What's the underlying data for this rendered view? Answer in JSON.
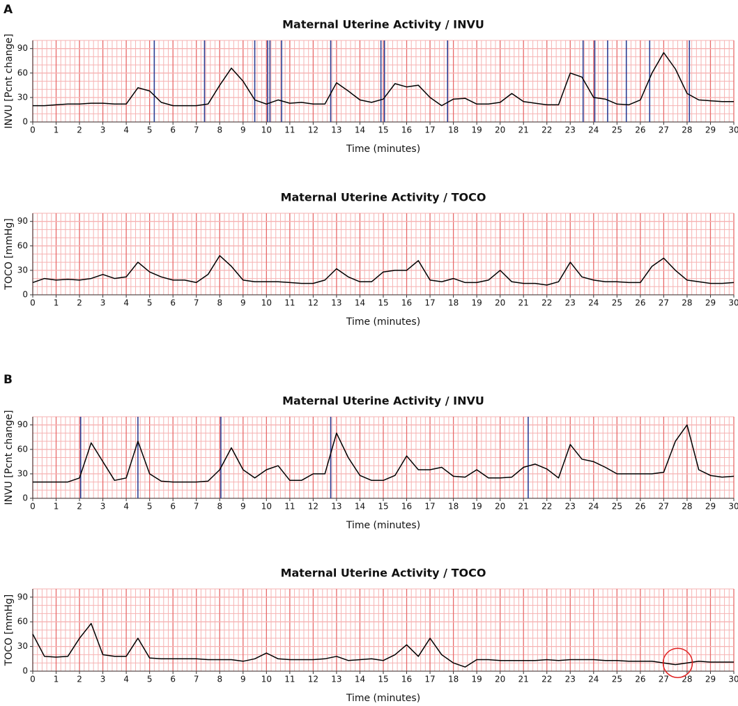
{
  "chart_data": [
    {
      "type": "line",
      "panel": "A",
      "title": "Maternal Uterine Activity / INVU",
      "x_label": "Time (minutes)",
      "y_label": "INVU [Pcnt change]",
      "xlim": [
        0,
        30
      ],
      "xticks": [
        0,
        1,
        2,
        3,
        4,
        5,
        6,
        7,
        8,
        9,
        10,
        11,
        12,
        13,
        14,
        15,
        16,
        17,
        18,
        19,
        20,
        21,
        22,
        23,
        24,
        25,
        26,
        27,
        28,
        29,
        30
      ],
      "ylim": [
        0,
        100
      ],
      "yticks": [
        0,
        30,
        60,
        90
      ],
      "grid": true,
      "grid_color": "#f6b3b3",
      "major_grid_color": "#e86a6a",
      "color": "#000000",
      "x": [
        0,
        0.5,
        1,
        1.5,
        2,
        2.5,
        3,
        3.5,
        4,
        4.5,
        5,
        5.5,
        6,
        6.5,
        7,
        7.5,
        8,
        8.5,
        9,
        9.5,
        10,
        10.5,
        11,
        11.5,
        12,
        12.5,
        13,
        13.5,
        14,
        14.5,
        15,
        15.5,
        16,
        16.5,
        17,
        17.5,
        18,
        18.5,
        19,
        19.5,
        20,
        20.5,
        21,
        21.5,
        22,
        22.5,
        23,
        23.5,
        24,
        24.5,
        25,
        25.5,
        26,
        26.5,
        27,
        27.5,
        28,
        28.5,
        29,
        29.5,
        30
      ],
      "values": [
        20,
        20,
        21,
        22,
        22,
        23,
        23,
        22,
        22,
        42,
        38,
        24,
        20,
        20,
        20,
        22,
        45,
        66,
        50,
        27,
        22,
        27,
        23,
        24,
        22,
        22,
        48,
        38,
        27,
        24,
        28,
        47,
        43,
        45,
        30,
        20,
        28,
        29,
        22,
        22,
        24,
        35,
        25,
        23,
        21,
        21,
        60,
        55,
        30,
        28,
        22,
        21,
        27,
        60,
        85,
        65,
        35,
        27,
        26,
        25,
        25
      ],
      "markers": [
        5.2,
        7.35,
        9.5,
        10.05,
        10.15,
        10.65,
        12.75,
        14.9,
        15.05,
        17.75,
        23.55,
        24.05,
        24.6,
        25.4,
        26.4,
        28.1
      ],
      "marker_color": "#2c3e94"
    },
    {
      "type": "line",
      "title": "Maternal Uterine Activity / TOCO",
      "x_label": "Time (minutes)",
      "y_label": "TOCO [mmHg]",
      "xlim": [
        0,
        30
      ],
      "xticks": [
        0,
        1,
        2,
        3,
        4,
        5,
        6,
        7,
        8,
        9,
        10,
        11,
        12,
        13,
        14,
        15,
        16,
        17,
        18,
        19,
        20,
        21,
        22,
        23,
        24,
        25,
        26,
        27,
        28,
        29,
        30
      ],
      "ylim": [
        0,
        100
      ],
      "yticks": [
        0,
        30,
        60,
        90
      ],
      "grid": true,
      "grid_color": "#f6b3b3",
      "major_grid_color": "#e86a6a",
      "color": "#000000",
      "x": [
        0,
        0.5,
        1,
        1.5,
        2,
        2.5,
        3,
        3.5,
        4,
        4.5,
        5,
        5.5,
        6,
        6.5,
        7,
        7.5,
        8,
        8.5,
        9,
        9.5,
        10,
        10.5,
        11,
        11.5,
        12,
        12.5,
        13,
        13.5,
        14,
        14.5,
        15,
        15.5,
        16,
        16.5,
        17,
        17.5,
        18,
        18.5,
        19,
        19.5,
        20,
        20.5,
        21,
        21.5,
        22,
        22.5,
        23,
        23.5,
        24,
        24.5,
        25,
        25.5,
        26,
        26.5,
        27,
        27.5,
        28,
        28.5,
        29,
        29.5,
        30
      ],
      "values": [
        15,
        20,
        18,
        19,
        18,
        20,
        25,
        20,
        22,
        40,
        28,
        22,
        18,
        18,
        15,
        25,
        48,
        35,
        18,
        16,
        16,
        16,
        15,
        14,
        14,
        18,
        32,
        22,
        16,
        16,
        28,
        30,
        30,
        42,
        18,
        16,
        20,
        15,
        15,
        18,
        30,
        16,
        14,
        14,
        12,
        16,
        40,
        22,
        18,
        16,
        16,
        15,
        15,
        35,
        45,
        30,
        18,
        16,
        14,
        14,
        15
      ]
    },
    {
      "type": "line",
      "panel": "B",
      "title": "Maternal Uterine Activity / INVU",
      "x_label": "Time (minutes)",
      "y_label": "INVU [Pcnt change]",
      "xlim": [
        0,
        30
      ],
      "xticks": [
        0,
        1,
        2,
        3,
        4,
        5,
        6,
        7,
        8,
        9,
        10,
        11,
        12,
        13,
        14,
        15,
        16,
        17,
        18,
        19,
        20,
        21,
        22,
        23,
        24,
        25,
        26,
        27,
        28,
        29,
        30
      ],
      "ylim": [
        0,
        100
      ],
      "yticks": [
        0,
        30,
        60,
        90
      ],
      "grid": true,
      "grid_color": "#f6b3b3",
      "major_grid_color": "#e86a6a",
      "color": "#000000",
      "x": [
        0,
        0.5,
        1,
        1.5,
        2,
        2.5,
        3,
        3.5,
        4,
        4.5,
        5,
        5.5,
        6,
        6.5,
        7,
        7.5,
        8,
        8.5,
        9,
        9.5,
        10,
        10.5,
        11,
        11.5,
        12,
        12.5,
        13,
        13.5,
        14,
        14.5,
        15,
        15.5,
        16,
        16.5,
        17,
        17.5,
        18,
        18.5,
        19,
        19.5,
        20,
        20.5,
        21,
        21.5,
        22,
        22.5,
        23,
        23.5,
        24,
        24.5,
        25,
        25.5,
        26,
        26.5,
        27,
        27.5,
        28,
        28.5,
        29,
        29.5,
        30
      ],
      "values": [
        20,
        20,
        20,
        20,
        25,
        68,
        45,
        22,
        25,
        70,
        30,
        21,
        20,
        20,
        20,
        21,
        35,
        62,
        35,
        25,
        35,
        40,
        22,
        22,
        30,
        30,
        80,
        50,
        28,
        22,
        22,
        28,
        52,
        35,
        35,
        38,
        27,
        26,
        35,
        25,
        25,
        26,
        38,
        42,
        36,
        25,
        66,
        48,
        45,
        38,
        30,
        30,
        30,
        30,
        32,
        70,
        90,
        35,
        28,
        26,
        27
      ],
      "markers": [
        2.05,
        4.5,
        8.05,
        12.75,
        21.2
      ],
      "marker_color": "#2c3e94"
    },
    {
      "type": "line",
      "title": "Maternal Uterine Activity / TOCO",
      "x_label": "Time (minutes)",
      "y_label": "TOCO [mmHg]",
      "xlim": [
        0,
        30
      ],
      "xticks": [
        0,
        1,
        2,
        3,
        4,
        5,
        6,
        7,
        8,
        9,
        10,
        11,
        12,
        13,
        14,
        15,
        16,
        17,
        18,
        19,
        20,
        21,
        22,
        23,
        24,
        25,
        26,
        27,
        28,
        29,
        30
      ],
      "ylim": [
        0,
        100
      ],
      "yticks": [
        0,
        30,
        60,
        90
      ],
      "grid": true,
      "grid_color": "#f6b3b3",
      "major_grid_color": "#e86a6a",
      "color": "#000000",
      "x": [
        0,
        0.5,
        1,
        1.5,
        2,
        2.5,
        3,
        3.5,
        4,
        4.5,
        5,
        5.5,
        6,
        6.5,
        7,
        7.5,
        8,
        8.5,
        9,
        9.5,
        10,
        10.5,
        11,
        11.5,
        12,
        12.5,
        13,
        13.5,
        14,
        14.5,
        15,
        15.5,
        16,
        16.5,
        17,
        17.5,
        18,
        18.5,
        19,
        19.5,
        20,
        20.5,
        21,
        21.5,
        22,
        22.5,
        23,
        23.5,
        24,
        24.5,
        25,
        25.5,
        26,
        26.5,
        27,
        27.5,
        28,
        28.5,
        29,
        29.5,
        30
      ],
      "values": [
        45,
        18,
        17,
        18,
        40,
        58,
        20,
        18,
        18,
        40,
        16,
        15,
        15,
        15,
        15,
        14,
        14,
        14,
        12,
        15,
        22,
        15,
        14,
        14,
        14,
        15,
        18,
        13,
        14,
        15,
        13,
        20,
        32,
        18,
        40,
        20,
        10,
        5,
        14,
        14,
        13,
        13,
        13,
        13,
        14,
        13,
        14,
        14,
        14,
        13,
        13,
        12,
        12,
        12,
        10,
        8,
        10,
        12,
        11,
        11,
        11
      ],
      "annotation_circle": {
        "x": 27.6,
        "y": 10,
        "color": "#e02020"
      }
    }
  ]
}
